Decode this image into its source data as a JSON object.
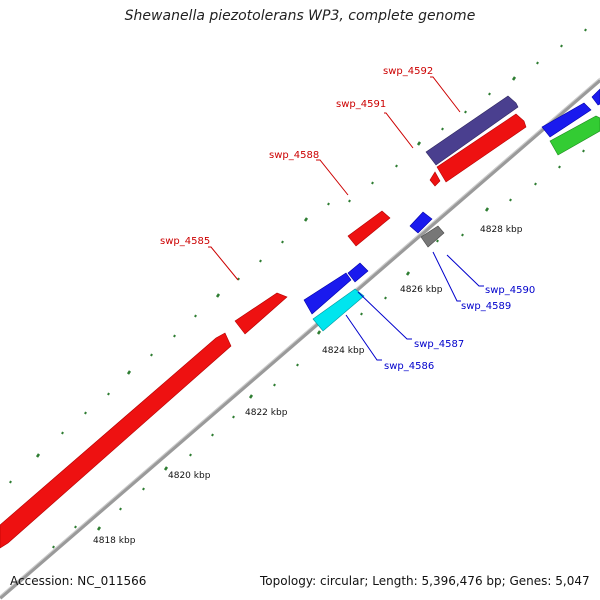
{
  "title": "Shewanella piezotolerans WP3, complete genome",
  "footer": {
    "accession": "Accession: NC_011566",
    "summary": "Topology: circular; Length: 5,396,476 bp; Genes: 5,047"
  },
  "colors": {
    "background": "#ffffff",
    "backbone": "#9a9a9a",
    "tick": "#2e7d32",
    "forward_label": "#cc0000",
    "reverse_label": "#0000cc"
  },
  "scale_labels": [
    "4818 kbp",
    "4820 kbp",
    "4822 kbp",
    "4824 kbp",
    "4826 kbp",
    "4828 kbp"
  ],
  "gene_labels": {
    "forward": [
      "swp_4585",
      "swp_4588",
      "swp_4591",
      "swp_4592"
    ],
    "reverse": [
      "swp_4586",
      "swp_4587",
      "swp_4589",
      "swp_4590"
    ]
  }
}
